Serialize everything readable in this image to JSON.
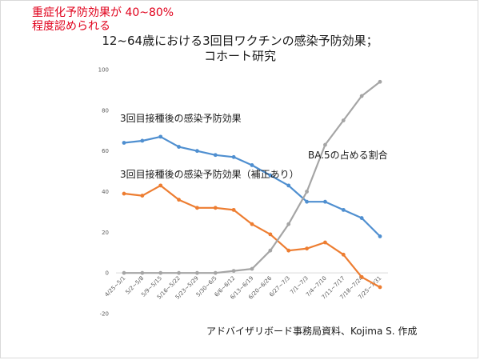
{
  "note": {
    "line1": "重症化予防効果が 40~80%",
    "line2": "程度認められる"
  },
  "chart_data": {
    "type": "line",
    "title_line1": "12~64歳における3回目ワクチンの感染予防効果；",
    "title_line2": "コホート研究",
    "xlabel": "",
    "ylabel": "",
    "ylim": [
      -20,
      100
    ],
    "yticks": [
      -20,
      0,
      20,
      40,
      60,
      80,
      100
    ],
    "categories": [
      "4/25~5/1",
      "5/2~5/8",
      "5/9~5/15",
      "5/16~5/22",
      "5/23~5/29",
      "5/30~6/5",
      "6/6~6/12",
      "6/13~6/19",
      "6/20~6/26",
      "6/27~7/3",
      "7/1~7/3",
      "7/4~7/10",
      "7/11~7/17",
      "7/18~7/24",
      "7/25~7/31"
    ],
    "grid": false,
    "legend": "none",
    "series": [
      {
        "name": "3回目接種後の感染予防効果",
        "color": "#4f8fd0",
        "values": [
          64,
          65,
          67,
          62,
          60,
          58,
          57,
          53,
          48,
          43,
          35,
          35,
          31,
          27,
          18
        ]
      },
      {
        "name": "3回目接種後の感染予防効果（補正あり）",
        "color": "#ed7d31",
        "values": [
          39,
          38,
          43,
          36,
          32,
          32,
          31,
          24,
          19,
          11,
          12,
          15,
          9,
          -2,
          -7
        ]
      },
      {
        "name": "BA.5の占める割合",
        "color": "#a5a5a5",
        "values": [
          0,
          0,
          0,
          0,
          0,
          0,
          1,
          2,
          11,
          24,
          40,
          63,
          75,
          87,
          94
        ]
      }
    ]
  },
  "source": "アドバイザリボード事務局資料、Kojima S. 作成"
}
